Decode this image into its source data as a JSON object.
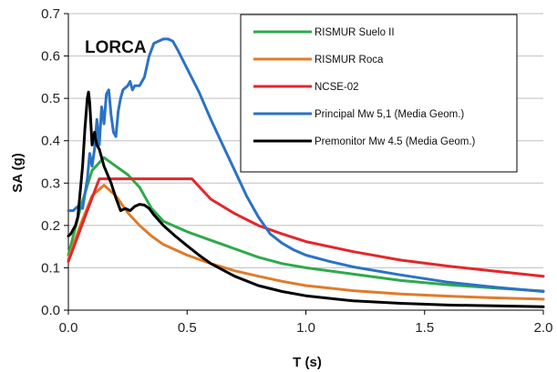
{
  "chart_data": {
    "type": "line",
    "title": "LORCA",
    "xlabel": "T (s)",
    "ylabel": "SA (g)",
    "xlim": [
      0,
      2.0
    ],
    "ylim": [
      0,
      0.7
    ],
    "x_ticks": [
      "0.0",
      "0.5",
      "1.0",
      "1.5",
      "2.0"
    ],
    "y_ticks": [
      "0.0",
      "0.1",
      "0.2",
      "0.3",
      "0.4",
      "0.5",
      "0.6",
      "0.7"
    ],
    "grid": "horizontal",
    "legend_position": "top-right",
    "series": [
      {
        "name": "RISMUR Suelo II",
        "color": "#2eaa4a",
        "points": [
          [
            0,
            0.13
          ],
          [
            0.05,
            0.24
          ],
          [
            0.1,
            0.33
          ],
          [
            0.15,
            0.36
          ],
          [
            0.2,
            0.34
          ],
          [
            0.25,
            0.32
          ],
          [
            0.3,
            0.29
          ],
          [
            0.35,
            0.24
          ],
          [
            0.4,
            0.21
          ],
          [
            0.5,
            0.185
          ],
          [
            0.6,
            0.165
          ],
          [
            0.7,
            0.145
          ],
          [
            0.8,
            0.125
          ],
          [
            0.9,
            0.11
          ],
          [
            1.0,
            0.1
          ],
          [
            1.2,
            0.085
          ],
          [
            1.4,
            0.07
          ],
          [
            1.6,
            0.06
          ],
          [
            1.8,
            0.052
          ],
          [
            2.0,
            0.045
          ]
        ]
      },
      {
        "name": "RISMUR Roca",
        "color": "#e07b2a",
        "points": [
          [
            0,
            0.12
          ],
          [
            0.05,
            0.2
          ],
          [
            0.1,
            0.27
          ],
          [
            0.15,
            0.295
          ],
          [
            0.2,
            0.27
          ],
          [
            0.25,
            0.23
          ],
          [
            0.3,
            0.2
          ],
          [
            0.35,
            0.175
          ],
          [
            0.4,
            0.155
          ],
          [
            0.5,
            0.13
          ],
          [
            0.6,
            0.11
          ],
          [
            0.7,
            0.093
          ],
          [
            0.8,
            0.08
          ],
          [
            0.9,
            0.068
          ],
          [
            1.0,
            0.058
          ],
          [
            1.2,
            0.046
          ],
          [
            1.4,
            0.038
          ],
          [
            1.6,
            0.033
          ],
          [
            1.8,
            0.029
          ],
          [
            2.0,
            0.026
          ]
        ]
      },
      {
        "name": "NCSE-02",
        "color": "#e4262a",
        "points": [
          [
            0,
            0.115
          ],
          [
            0.1,
            0.265
          ],
          [
            0.13,
            0.31
          ],
          [
            0.3,
            0.31
          ],
          [
            0.52,
            0.31
          ],
          [
            0.6,
            0.262
          ],
          [
            0.7,
            0.228
          ],
          [
            0.8,
            0.2
          ],
          [
            0.9,
            0.18
          ],
          [
            1.0,
            0.162
          ],
          [
            1.2,
            0.138
          ],
          [
            1.4,
            0.118
          ],
          [
            1.6,
            0.104
          ],
          [
            1.8,
            0.092
          ],
          [
            2.0,
            0.08
          ]
        ]
      },
      {
        "name": "Principal Mw 5,1 (Media Geom.)",
        "color": "#2b72c6",
        "points": [
          [
            0,
            0.235
          ],
          [
            0.02,
            0.235
          ],
          [
            0.04,
            0.245
          ],
          [
            0.06,
            0.24
          ],
          [
            0.08,
            0.31
          ],
          [
            0.09,
            0.37
          ],
          [
            0.1,
            0.34
          ],
          [
            0.11,
            0.38
          ],
          [
            0.12,
            0.45
          ],
          [
            0.13,
            0.39
          ],
          [
            0.14,
            0.48
          ],
          [
            0.15,
            0.44
          ],
          [
            0.16,
            0.51
          ],
          [
            0.17,
            0.52
          ],
          [
            0.18,
            0.46
          ],
          [
            0.19,
            0.42
          ],
          [
            0.2,
            0.41
          ],
          [
            0.21,
            0.47
          ],
          [
            0.22,
            0.5
          ],
          [
            0.23,
            0.52
          ],
          [
            0.24,
            0.525
          ],
          [
            0.25,
            0.53
          ],
          [
            0.26,
            0.54
          ],
          [
            0.27,
            0.52
          ],
          [
            0.28,
            0.53
          ],
          [
            0.3,
            0.53
          ],
          [
            0.32,
            0.55
          ],
          [
            0.34,
            0.6
          ],
          [
            0.36,
            0.63
          ],
          [
            0.38,
            0.635
          ],
          [
            0.4,
            0.64
          ],
          [
            0.42,
            0.64
          ],
          [
            0.44,
            0.635
          ],
          [
            0.46,
            0.615
          ],
          [
            0.5,
            0.57
          ],
          [
            0.55,
            0.515
          ],
          [
            0.6,
            0.45
          ],
          [
            0.65,
            0.39
          ],
          [
            0.7,
            0.33
          ],
          [
            0.75,
            0.27
          ],
          [
            0.8,
            0.22
          ],
          [
            0.85,
            0.18
          ],
          [
            0.9,
            0.158
          ],
          [
            0.95,
            0.142
          ],
          [
            1.0,
            0.13
          ],
          [
            1.1,
            0.115
          ],
          [
            1.2,
            0.102
          ],
          [
            1.4,
            0.083
          ],
          [
            1.6,
            0.066
          ],
          [
            1.8,
            0.054
          ],
          [
            2.0,
            0.044
          ]
        ]
      },
      {
        "name": "Premonitor Mw 4.5 (Media Geom.)",
        "color": "#000000",
        "points": [
          [
            0,
            0.175
          ],
          [
            0.01,
            0.18
          ],
          [
            0.02,
            0.19
          ],
          [
            0.03,
            0.2
          ],
          [
            0.04,
            0.22
          ],
          [
            0.05,
            0.28
          ],
          [
            0.06,
            0.34
          ],
          [
            0.07,
            0.43
          ],
          [
            0.08,
            0.5
          ],
          [
            0.085,
            0.515
          ],
          [
            0.09,
            0.49
          ],
          [
            0.1,
            0.39
          ],
          [
            0.11,
            0.42
          ],
          [
            0.12,
            0.39
          ],
          [
            0.13,
            0.38
          ],
          [
            0.15,
            0.34
          ],
          [
            0.18,
            0.3
          ],
          [
            0.2,
            0.265
          ],
          [
            0.22,
            0.235
          ],
          [
            0.24,
            0.24
          ],
          [
            0.26,
            0.235
          ],
          [
            0.28,
            0.245
          ],
          [
            0.3,
            0.25
          ],
          [
            0.32,
            0.248
          ],
          [
            0.34,
            0.24
          ],
          [
            0.36,
            0.225
          ],
          [
            0.4,
            0.2
          ],
          [
            0.45,
            0.175
          ],
          [
            0.5,
            0.152
          ],
          [
            0.55,
            0.13
          ],
          [
            0.6,
            0.11
          ],
          [
            0.7,
            0.08
          ],
          [
            0.8,
            0.058
          ],
          [
            0.9,
            0.044
          ],
          [
            1.0,
            0.034
          ],
          [
            1.2,
            0.022
          ],
          [
            1.4,
            0.016
          ],
          [
            1.6,
            0.012
          ],
          [
            1.8,
            0.01
          ],
          [
            2.0,
            0.008
          ]
        ]
      }
    ]
  }
}
